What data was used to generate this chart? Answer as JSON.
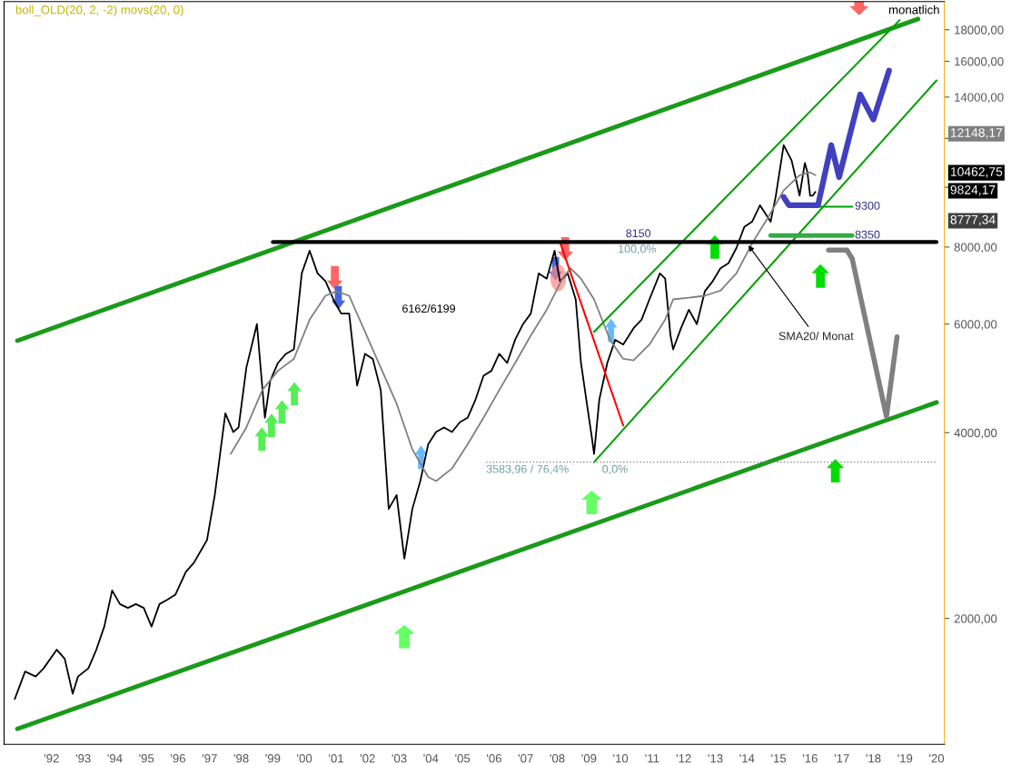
{
  "chart_data": {
    "type": "line",
    "title": "boll_OLD(20, 2, -2) movs(20, 0)",
    "subtitle": "monatlich",
    "log": "y",
    "grid": false,
    "legend": false,
    "marker": "none",
    "xlim": [
      "1990-07",
      "2020-04"
    ],
    "xticks": [
      {
        "value": "1992-01",
        "label": "'92"
      },
      {
        "value": "1993-01",
        "label": "'93"
      },
      {
        "value": "1994-01",
        "label": "'94"
      },
      {
        "value": "1995-01",
        "label": "'95"
      },
      {
        "value": "1996-01",
        "label": "'96"
      },
      {
        "value": "1997-01",
        "label": "'97"
      },
      {
        "value": "1998-01",
        "label": "'98"
      },
      {
        "value": "1999-01",
        "label": "'99"
      },
      {
        "value": "2000-01",
        "label": "'00"
      },
      {
        "value": "2001-01",
        "label": "'01"
      },
      {
        "value": "2002-01",
        "label": "'02"
      },
      {
        "value": "2003-01",
        "label": "'03"
      },
      {
        "value": "2004-01",
        "label": "'04"
      },
      {
        "value": "2005-01",
        "label": "'05"
      },
      {
        "value": "2006-01",
        "label": "'06"
      },
      {
        "value": "2007-01",
        "label": "'07"
      },
      {
        "value": "2008-01",
        "label": "'08"
      },
      {
        "value": "2009-01",
        "label": "'09"
      },
      {
        "value": "2010-01",
        "label": "'10"
      },
      {
        "value": "2011-01",
        "label": "'11"
      },
      {
        "value": "2012-01",
        "label": "'12"
      },
      {
        "value": "2013-01",
        "label": "'13"
      },
      {
        "value": "2014-01",
        "label": "'14"
      },
      {
        "value": "2015-01",
        "label": "'15"
      },
      {
        "value": "2016-01",
        "label": "'16"
      },
      {
        "value": "2017-01",
        "label": "'17"
      },
      {
        "value": "2018-01",
        "label": "'18"
      },
      {
        "value": "2019-01",
        "label": "'19"
      },
      {
        "value": "2020-01",
        "label": "'20"
      }
    ],
    "ylim": [
      1250,
      20000
    ],
    "yticks": [
      {
        "value": 2000,
        "label": "2000,00"
      },
      {
        "value": 4000,
        "label": "4000,00"
      },
      {
        "value": 6000,
        "label": "6000,00"
      },
      {
        "value": 8000,
        "label": "8000,00"
      },
      {
        "value": 10000,
        "label": null
      },
      {
        "value": 12000,
        "label": null
      },
      {
        "value": 14000,
        "label": "14000,00"
      },
      {
        "value": 16000,
        "label": "16000,00"
      },
      {
        "value": 18000,
        "label": "18000,00"
      }
    ],
    "series": [
      {
        "color": "#000000",
        "x": [
          "1990-11",
          "1991-03",
          "1991-07",
          "1991-10",
          "1992-03",
          "1992-06",
          "1992-09",
          "1992-11",
          "1993-03",
          "1993-06",
          "1993-09",
          "1993-12",
          "1994-03",
          "1994-06",
          "1994-09",
          "1994-12",
          "1995-03",
          "1995-06",
          "1995-09",
          "1995-12",
          "1996-04",
          "1996-07",
          "1996-10",
          "1996-12",
          "1997-03",
          "1997-07",
          "1997-10",
          "1997-12",
          "1998-03",
          "1998-07",
          "1998-10",
          "1998-12",
          "1999-03",
          "1999-06",
          "1999-09",
          "1999-12",
          "2000-03",
          "2000-06",
          "2000-09",
          "2000-12",
          "2001-03",
          "2001-06",
          "2001-09",
          "2001-12",
          "2002-03",
          "2002-06",
          "2002-09",
          "2002-12",
          "2003-03",
          "2003-06",
          "2003-09",
          "2003-12",
          "2004-03",
          "2004-06",
          "2004-09",
          "2004-12",
          "2005-03",
          "2005-06",
          "2005-09",
          "2005-12",
          "2006-03",
          "2006-06",
          "2006-09",
          "2006-12",
          "2007-03",
          "2007-06",
          "2007-09",
          "2007-12",
          "2008-02",
          "2008-05",
          "2008-08",
          "2008-10",
          "2008-12",
          "2009-02",
          "2009-03",
          "2009-05",
          "2009-08",
          "2009-11",
          "2010-02",
          "2010-06",
          "2010-09",
          "2010-12",
          "2011-04",
          "2011-06",
          "2011-08",
          "2011-09",
          "2011-12",
          "2012-03",
          "2012-06",
          "2012-09",
          "2012-12",
          "2013-03",
          "2013-06",
          "2013-09",
          "2013-12",
          "2014-03",
          "2014-06",
          "2014-09",
          "2014-10",
          "2014-12",
          "2015-03",
          "2015-04",
          "2015-06",
          "2015-08",
          "2015-09",
          "2015-11",
          "2015-12",
          "2016-01",
          "2016-02",
          "2016-03"
        ],
        "values": [
          1480,
          1640,
          1610,
          1660,
          1780,
          1720,
          1510,
          1610,
          1660,
          1780,
          1940,
          2220,
          2110,
          2080,
          2110,
          2080,
          1940,
          2110,
          2145,
          2185,
          2380,
          2460,
          2590,
          2680,
          3170,
          4300,
          4010,
          4080,
          5100,
          6000,
          4230,
          4850,
          5190,
          5370,
          5460,
          7250,
          7890,
          7250,
          7040,
          6580,
          6240,
          6240,
          4770,
          5370,
          5270,
          4690,
          3010,
          3170,
          2500,
          3010,
          3340,
          3830,
          4010,
          4080,
          4010,
          4160,
          4230,
          4530,
          4950,
          5040,
          5370,
          5190,
          5660,
          6000,
          6240,
          7250,
          7110,
          7890,
          7040,
          7250,
          6580,
          5190,
          4530,
          3950,
          3695,
          4530,
          5190,
          5660,
          5560,
          5910,
          6100,
          6580,
          7250,
          7110,
          5750,
          5460,
          5910,
          6330,
          6000,
          6780,
          7040,
          7390,
          7530,
          7970,
          8620,
          8790,
          9350,
          8930,
          8790,
          9690,
          11700,
          11480,
          11050,
          10150,
          9690,
          10950,
          10570,
          9690,
          9690,
          9824
        ]
      },
      {
        "color": "#808080",
        "x": [
          "1997-09",
          "1998-03",
          "1998-09",
          "1999-03",
          "1999-09",
          "2000-03",
          "2000-09",
          "2001-01",
          "2001-06",
          "2001-12",
          "2002-06",
          "2002-12",
          "2003-06",
          "2003-12",
          "2004-03",
          "2004-09",
          "2005-03",
          "2005-09",
          "2006-03",
          "2006-09",
          "2007-03",
          "2007-09",
          "2008-03",
          "2008-06",
          "2008-10",
          "2009-03",
          "2009-09",
          "2010-02",
          "2010-06",
          "2010-12",
          "2011-06",
          "2011-09",
          "2012-03",
          "2012-09",
          "2013-03",
          "2013-09",
          "2014-03",
          "2014-09",
          "2015-03",
          "2015-09",
          "2016-01",
          "2016-03"
        ],
        "values": [
          3695,
          4080,
          4690,
          5040,
          5270,
          6100,
          6670,
          6780,
          6670,
          5830,
          5100,
          4460,
          3760,
          3390,
          3340,
          3500,
          3830,
          4230,
          4690,
          5190,
          5750,
          6330,
          7110,
          7390,
          7110,
          6580,
          5660,
          5270,
          5240,
          5560,
          6100,
          6580,
          6620,
          6670,
          6800,
          7250,
          8110,
          8930,
          9880,
          10460,
          10570,
          10463
        ]
      },
      {
        "color": "#1a9a1a",
        "x": [
          "1990-12",
          "2019-06"
        ],
        "values": [
          5640,
          18740
        ]
      },
      {
        "color": "#1a9a1a",
        "x": [
          "1990-12",
          "2020-01"
        ],
        "values": [
          1324,
          4480
        ]
      },
      {
        "color": "#00a000",
        "x": [
          "2009-03",
          "2020-01"
        ],
        "values": [
          3584,
          14900
        ]
      },
      {
        "color": "#00a000",
        "x": [
          "2009-03",
          "2018-11"
        ],
        "values": [
          5830,
          18660
        ]
      },
      {
        "color": "#ff0000",
        "x": [
          "2008-02",
          "2010-02"
        ],
        "values": [
          8150,
          4110
        ]
      },
      {
        "color": "#000000",
        "x": [
          "1999-01",
          "2020-01"
        ],
        "values": [
          8150,
          8150
        ]
      },
      {
        "color": "#808080",
        "line_style": "dotted",
        "x": [
          "2005-10",
          "2020-01"
        ],
        "values": [
          3583.96,
          3583.96
        ]
      },
      {
        "color": "#00a000",
        "x": [
          "2016-03",
          "2017-05"
        ],
        "values": [
          9300,
          9300
        ]
      },
      {
        "color": "#33aa44",
        "x": [
          "2014-10",
          "2017-05"
        ],
        "values": [
          8350,
          8350
        ]
      },
      {
        "color": "#4040c0",
        "x": [
          "2015-03",
          "2015-05",
          "2016-04",
          "2016-09",
          "2016-12",
          "2017-08",
          "2018-01",
          "2018-07"
        ],
        "values": [
          9640,
          9350,
          9350,
          11700,
          10380,
          14140,
          12880,
          15450
        ]
      },
      {
        "color": "#808080",
        "x": [
          "2016-08",
          "2017-03",
          "2017-05",
          "2018-06",
          "2018-10"
        ],
        "values": [
          7910,
          7910,
          7660,
          4250,
          5720
        ]
      }
    ],
    "annotations": [
      "6162/6199",
      {
        "text": "SMA20/ Monat",
        "x": "2014-01",
        "y": 8110
      },
      {
        "text": "8150",
        "x": "2010-03",
        "y": 8150
      },
      {
        "text": "100,0%",
        "x": "2009-12",
        "y": 8150
      },
      {
        "text": "3583,96 / 76,4%",
        "x": "2005-10",
        "y": 3583.96
      },
      {
        "text": "0,0%",
        "x": "2009-06",
        "y": 3583.96
      },
      {
        "text": "9300",
        "x": "2017-06",
        "y": 9300
      },
      {
        "text": "8350",
        "x": "2017-06",
        "y": 8350
      },
      "12148,17",
      "10462,75",
      "9824,17",
      "8777,34"
    ]
  }
}
